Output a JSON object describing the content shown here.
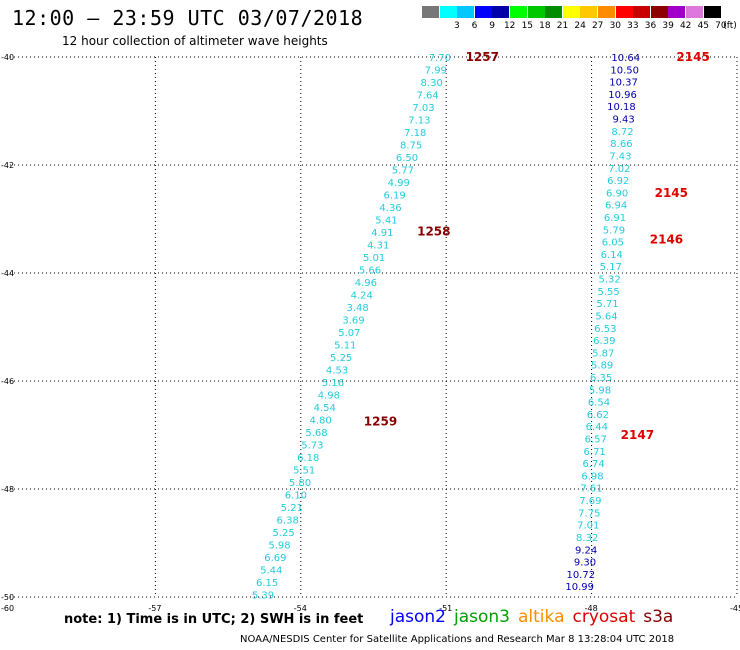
{
  "header": {
    "title": "12:00 – 23:59 UTC 03/07/2018",
    "subtitle": "12 hour collection of altimeter wave heights"
  },
  "colorbar": {
    "unit": "(ft)",
    "cells": [
      {
        "label": "",
        "color": "#777777"
      },
      {
        "label": "3",
        "color": "#00ffff"
      },
      {
        "label": "6",
        "color": "#00c8ff"
      },
      {
        "label": "9",
        "color": "#0000ff"
      },
      {
        "label": "12",
        "color": "#0000aa"
      },
      {
        "label": "15",
        "color": "#00ff00"
      },
      {
        "label": "18",
        "color": "#00c800"
      },
      {
        "label": "21",
        "color": "#008c00"
      },
      {
        "label": "24",
        "color": "#ffff00"
      },
      {
        "label": "27",
        "color": "#ffc800"
      },
      {
        "label": "30",
        "color": "#ff8c00"
      },
      {
        "label": "33",
        "color": "#ff0000"
      },
      {
        "label": "36",
        "color": "#c80000"
      },
      {
        "label": "39",
        "color": "#8c0000"
      },
      {
        "label": "42",
        "color": "#a000c8"
      },
      {
        "label": "45",
        "color": "#dc78dc"
      },
      {
        "label": "70",
        "color": "#000000"
      }
    ]
  },
  "axes": {
    "lat_labels": [
      "-40",
      "-42",
      "-44",
      "-46",
      "-48",
      "-50"
    ],
    "lon_labels": [
      "-60",
      "-57",
      "-54",
      "-51",
      "-48",
      "-45"
    ]
  },
  "tracks": [
    {
      "name": "track-1",
      "color": "#22ccdd",
      "start": {
        "lon": -50.9,
        "lat": -40.0
      },
      "end": {
        "lon": -54.55,
        "lat": -49.95
      },
      "values": [
        "7.70",
        "7.99",
        "8.30",
        "7.64",
        "7.03",
        "7.13",
        "7.18",
        "8.75",
        "6.50",
        "5.77",
        "4.99",
        "6.19",
        "4.36",
        "5.41",
        "4.91",
        "4.31",
        "5.01",
        "5.66",
        "4.96",
        "4.24",
        "3.48",
        "3.69",
        "5.07",
        "5.11",
        "5.25",
        "4.53",
        "5.16",
        "4.98",
        "4.54",
        "4.80",
        "5.68",
        "5.73",
        "6.18",
        "5.51",
        "5.80",
        "6.10",
        "5.21",
        "6.38",
        "5.25",
        "5.98",
        "6.69",
        "5.44",
        "6.15",
        "5.39"
      ],
      "times": [
        {
          "label": "1257",
          "lon": -50.6,
          "lat": -40.0
        },
        {
          "label": "1258",
          "lon": -51.6,
          "lat": -43.23
        },
        {
          "label": "1259",
          "lon": -52.7,
          "lat": -46.75
        }
      ]
    },
    {
      "name": "track-2",
      "color": "#22ccdd",
      "start": {
        "lon": -47.0,
        "lat": -40.0
      },
      "end": {
        "lon": -47.95,
        "lat": -49.8
      },
      "values": [
        "10.64",
        "10.50",
        "10.37",
        "10.96",
        "10.18",
        "9.43",
        "8.72",
        "8.66",
        "7.43",
        "7.02",
        "6.92",
        "6.90",
        "6.94",
        "6.91",
        "5.79",
        "6.05",
        "6.14",
        "5.17",
        "5.32",
        "5.55",
        "5.71",
        "5.64",
        "6.53",
        "6.39",
        "5.87",
        "5.89",
        "6.35",
        "5.98",
        "6.54",
        "6.62",
        "6.44",
        "6.57",
        "6.71",
        "6.74",
        "6.98",
        "7.61",
        "7.69",
        "7.75",
        "7.01",
        "8.32",
        "9.24",
        "9.30",
        "10.72",
        "10.99"
      ],
      "times": [
        {
          "label": "2145",
          "lon": -46.25,
          "lat": -40.0
        },
        {
          "label": "2145",
          "lon": -46.7,
          "lat": -42.52
        },
        {
          "label": "2146",
          "lon": -46.8,
          "lat": -43.38
        },
        {
          "label": "2147",
          "lon": -47.4,
          "lat": -47.0
        }
      ]
    }
  ],
  "note": "note: 1) Time is in UTC; 2) SWH is in feet",
  "legend": [
    {
      "label": "jason2",
      "color": "#0000ff"
    },
    {
      "label": "jason3",
      "color": "#00a000"
    },
    {
      "label": "altika",
      "color": "#ff8c00"
    },
    {
      "label": "cryosat",
      "color": "#dd0000"
    },
    {
      "label": "s3a",
      "color": "#880000"
    }
  ],
  "footer": "NOAA/NESDIS Center for Satellite Applications and Research   Mar  8 13:28:04 UTC 2018"
}
